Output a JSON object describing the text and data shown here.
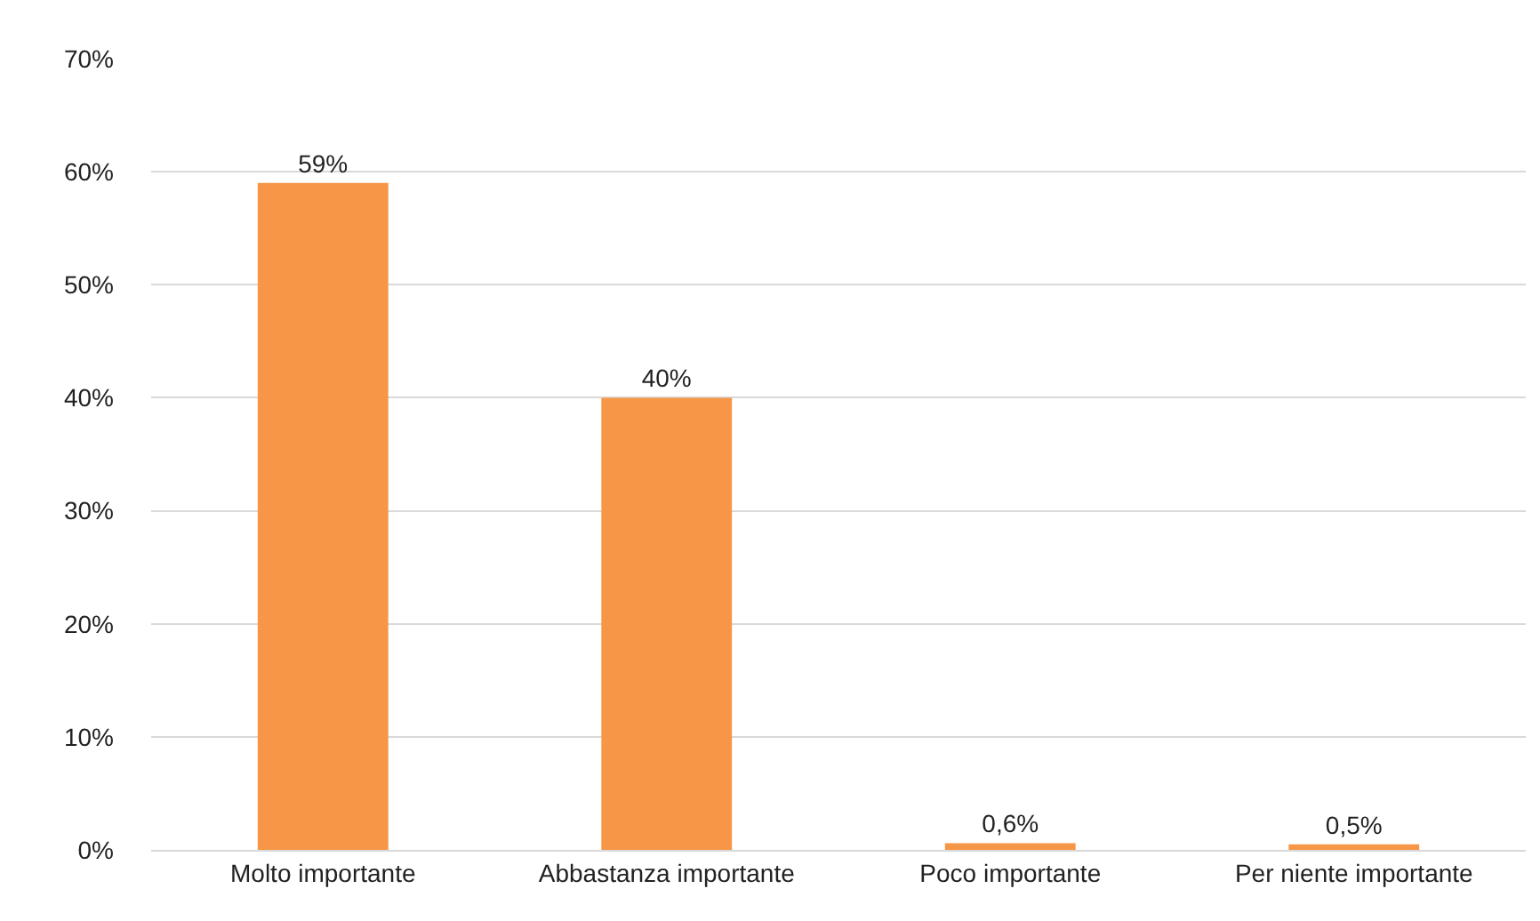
{
  "chart_data": {
    "type": "bar",
    "categories": [
      "Molto importante",
      "Abbastanza importante",
      "Poco importante",
      "Per niente importante"
    ],
    "values": [
      59,
      40,
      0.6,
      0.5
    ],
    "value_labels": [
      "59%",
      "40%",
      "0,6%",
      "0,5%"
    ],
    "color": "#f79646",
    "ylim": [
      0,
      70
    ],
    "yticks": [
      {
        "value": 0,
        "label": "0%"
      },
      {
        "value": 10,
        "label": "10%"
      },
      {
        "value": 20,
        "label": "20%"
      },
      {
        "value": 30,
        "label": "30%"
      },
      {
        "value": 40,
        "label": "40%"
      },
      {
        "value": 50,
        "label": "50%"
      },
      {
        "value": 60,
        "label": "60%"
      },
      {
        "value": 70,
        "label": "70%"
      }
    ],
    "grid": "y"
  }
}
